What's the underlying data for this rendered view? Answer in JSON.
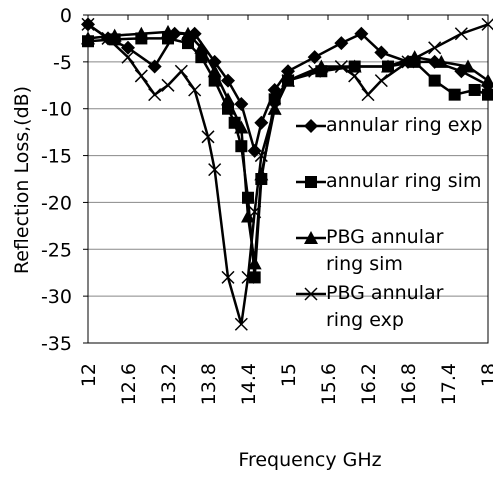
{
  "chart_data": {
    "type": "line",
    "x_label": "Frequency GHz",
    "y_label": "Reflection Loss,(dB)",
    "xlim": [
      12,
      18
    ],
    "xticks": [
      12,
      12.6,
      13.2,
      13.8,
      14.4,
      15,
      15.6,
      16.2,
      16.8,
      17.4,
      18
    ],
    "ylim": [
      -35,
      0
    ],
    "yticks": [
      0,
      -5,
      -10,
      -15,
      -20,
      -25,
      -30,
      -35
    ],
    "grid": true,
    "series": [
      {
        "name": "annular ring exp",
        "color": "#000000",
        "marker": "diamond",
        "x": [
          12,
          12.3,
          12.6,
          13,
          13.3,
          13.6,
          13.9,
          14.1,
          14.3,
          14.5,
          14.6,
          14.8,
          15,
          15.4,
          15.8,
          16.1,
          16.4,
          16.8,
          17.2,
          17.6,
          18
        ],
        "values": [
          -1,
          -2.5,
          -3.5,
          -5.5,
          -2,
          -2,
          -5,
          -7,
          -9.5,
          -14.5,
          -11.5,
          -8,
          -6,
          -4.5,
          -3,
          -2,
          -4,
          -5,
          -5,
          -6,
          -7.5
        ]
      },
      {
        "name": "annular ring sim",
        "color": "#000000",
        "marker": "square",
        "x": [
          12,
          12.4,
          12.8,
          13.2,
          13.5,
          13.7,
          13.9,
          14.1,
          14.2,
          14.3,
          14.4,
          14.5,
          14.6,
          14.8,
          15,
          15.5,
          16,
          16.5,
          16.9,
          17.2,
          17.5,
          17.8,
          18
        ],
        "values": [
          -2.8,
          -2.6,
          -2.5,
          -2.5,
          -3,
          -4.5,
          -7,
          -10,
          -11.5,
          -14,
          -19.5,
          -28,
          -17.5,
          -9,
          -7,
          -6,
          -5.5,
          -5.5,
          -5,
          -7,
          -8.5,
          -8,
          -8.5
        ]
      },
      {
        "name": "PBG annular ring sim",
        "color": "#000000",
        "marker": "triangle",
        "x": [
          12,
          12.4,
          12.8,
          13.2,
          13.5,
          13.7,
          13.9,
          14.1,
          14.3,
          14.4,
          14.5,
          14.6,
          14.8,
          15,
          15.5,
          16,
          16.5,
          16.9,
          17.3,
          17.7,
          18
        ],
        "values": [
          -2.5,
          -2.2,
          -2,
          -1.8,
          -2,
          -3.5,
          -6,
          -9,
          -12,
          -21.5,
          -26.5,
          -17,
          -10,
          -7,
          -5.5,
          -5.5,
          -5.5,
          -4.5,
          -5,
          -5.5,
          -7
        ]
      },
      {
        "name": "PBG annular ring exp",
        "color": "#000000",
        "marker": "x",
        "x": [
          12,
          12.3,
          12.6,
          12.8,
          13,
          13.2,
          13.4,
          13.6,
          13.8,
          13.9,
          14.1,
          14.3,
          14.4,
          14.5,
          14.6,
          14.8,
          15,
          15.4,
          15.8,
          16,
          16.2,
          16.4,
          16.8,
          17.2,
          17.6,
          18
        ],
        "values": [
          -1,
          -2.5,
          -4.5,
          -6.5,
          -8.5,
          -7.5,
          -6,
          -8,
          -13,
          -16.5,
          -28,
          -33,
          -28,
          -21,
          -15,
          -10,
          -7,
          -6,
          -5.5,
          -6.5,
          -8.5,
          -7,
          -5,
          -3.5,
          -2,
          -1
        ]
      }
    ]
  }
}
